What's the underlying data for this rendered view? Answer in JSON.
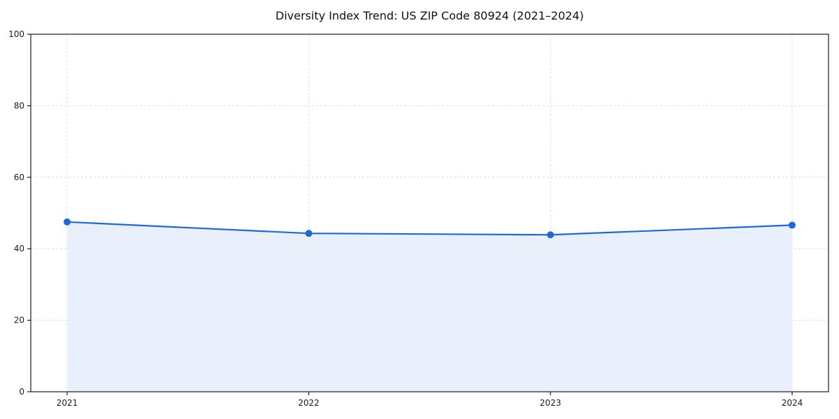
{
  "figure": {
    "background": "#ffffff"
  },
  "chart_data": {
    "type": "area",
    "title": "Diversity Index Trend: US ZIP Code 80924 (2021–2024)",
    "categories": [
      "2021",
      "2022",
      "2023",
      "2024"
    ],
    "series": [
      {
        "name": "Diversity Index",
        "values": [
          47.5,
          44.3,
          43.9,
          46.6
        ]
      }
    ],
    "xlabel": "",
    "ylabel": "",
    "ylim": [
      0,
      100
    ],
    "yticks": [
      0,
      20,
      40,
      60,
      80,
      100
    ],
    "grid": "dashed",
    "legend_position": "none",
    "line_color": "#1f68dc",
    "marker_color": "#1f68dc",
    "fill_color": "#e9f0fb",
    "grid_color": "#dedede",
    "spine_color": "#1a1a1a",
    "marker": "circle"
  }
}
